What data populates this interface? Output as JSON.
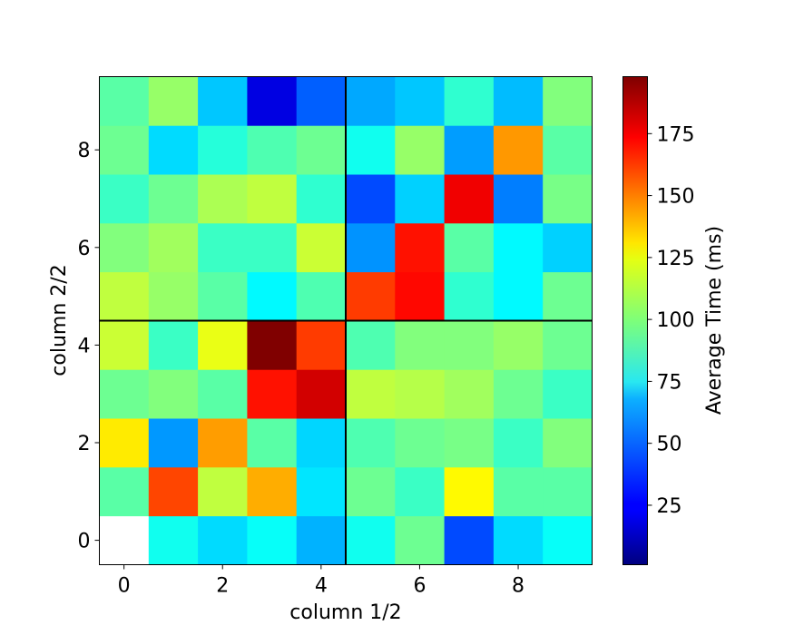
{
  "chart_data": {
    "type": "heatmap",
    "title": "",
    "xlabel": "column 1/2",
    "ylabel": "column 2/2",
    "colorbar_label": "Average Time (ms)",
    "colormap": "jet",
    "color_range": [
      1,
      198
    ],
    "origin": "lower",
    "rows": 10,
    "cols": 10,
    "x_ticks": [
      0,
      2,
      4,
      6,
      8
    ],
    "y_ticks": [
      0,
      2,
      4,
      6,
      8
    ],
    "colorbar_ticks": [
      25,
      50,
      75,
      100,
      125,
      150,
      175
    ],
    "divider_lines": [
      4.5
    ],
    "missing_cells": [
      [
        0,
        0
      ]
    ],
    "values": [
      [
        null,
        78,
        68,
        76,
        60,
        78,
        96,
        40,
        68,
        76
      ],
      [
        92,
        160,
        112,
        140,
        70,
        96,
        86,
        125,
        92,
        92
      ],
      [
        128,
        55,
        143,
        92,
        67,
        90,
        96,
        98,
        86,
        100
      ],
      [
        96,
        100,
        92,
        170,
        182,
        112,
        110,
        106,
        96,
        86
      ],
      [
        114,
        86,
        120,
        198,
        162,
        90,
        100,
        100,
        104,
        96
      ],
      [
        112,
        104,
        92,
        74,
        90,
        162,
        172,
        84,
        74,
        96
      ],
      [
        100,
        106,
        86,
        86,
        114,
        54,
        170,
        92,
        74,
        66
      ],
      [
        86,
        96,
        108,
        112,
        84,
        40,
        66,
        176,
        50,
        98
      ],
      [
        96,
        68,
        82,
        90,
        96,
        78,
        104,
        56,
        144,
        92
      ],
      [
        92,
        104,
        64,
        20,
        44,
        58,
        64,
        84,
        62,
        100
      ]
    ],
    "grid": false
  }
}
